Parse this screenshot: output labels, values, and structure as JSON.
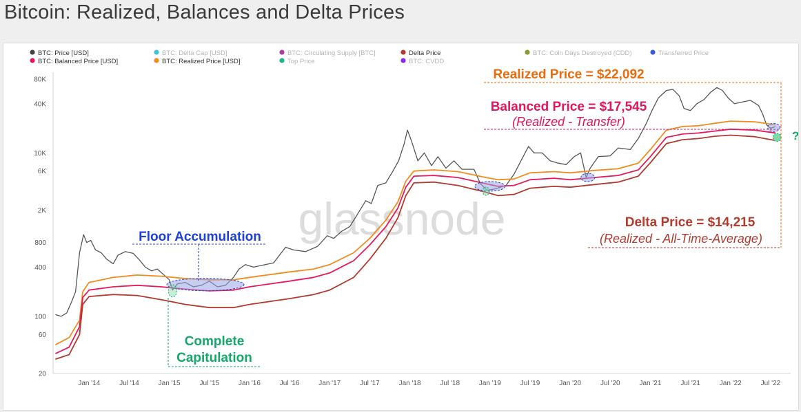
{
  "title": "Bitcoin: Realized, Balances and Delta Prices",
  "colors": {
    "price": "#555555",
    "realized": "#f08c1e",
    "balanced": "#e6195a",
    "delta": "#b23a2c",
    "orange_text": "#ec6b0c",
    "pink_text": "#e2155c",
    "brown_text": "#b33b2e",
    "blue_text": "#1f3fd6",
    "green_text": "#14a86a",
    "highlight_fill": "#9aa6e6",
    "highlight_stroke": "#2b45c9"
  },
  "legend": [
    {
      "label": "BTC: Price [USD]",
      "color": "#444444",
      "active": true
    },
    {
      "label": "BTC: Balanced Price [USD]",
      "color": "#e6195a",
      "active": true
    },
    {
      "label": "BTC: Delta Cap [USD]",
      "color": "#3fc1e0",
      "active": false
    },
    {
      "label": "BTC: Realized Price [USD]",
      "color": "#f08c1e",
      "active": true
    },
    {
      "label": "BTC: Circulating Supply [BTC]",
      "color": "#b03a9e",
      "active": false
    },
    {
      "label": "Top Price",
      "color": "#1fb38a",
      "active": false
    },
    {
      "label": "Delta Price",
      "color": "#b23a2c",
      "active": true
    },
    {
      "label": "BTC: CVDD",
      "color": "#8a2be2",
      "active": false
    },
    {
      "label": "BTC: Coin Days Destroyed (CDD)",
      "color": "#8a9a2a",
      "active": false
    },
    {
      "label": "Transferred Price",
      "color": "#3b5bdb",
      "active": false
    }
  ],
  "watermark": "glassnode",
  "annotations": {
    "realized_price": "Realized Price = $22,092",
    "balanced_price": "Balanced Price = $17,545",
    "balanced_sub": "(Realized - Transfer)",
    "delta_price": "Delta Price = $14,215",
    "delta_sub": "(Realized - All-Time-Average)",
    "floor_accumulation": "Floor Accumulation",
    "complete_capitulation_1": "Complete",
    "complete_capitulation_2": "Capitulation",
    "question": "?"
  },
  "chart_data": {
    "type": "line",
    "title": "Bitcoin: Realized, Balances and Delta Prices",
    "y_scale": "log",
    "ylim": [
      20,
      80000
    ],
    "y_ticks": [
      {
        "label": "20",
        "value": 20
      },
      {
        "label": "60",
        "value": 60
      },
      {
        "label": "100",
        "value": 100
      },
      {
        "label": "400",
        "value": 400
      },
      {
        "label": "800",
        "value": 800
      },
      {
        "label": "2K",
        "value": 2000
      },
      {
        "label": "6K",
        "value": 6000
      },
      {
        "label": "10K",
        "value": 10000
      },
      {
        "label": "40K",
        "value": 40000
      },
      {
        "label": "80K",
        "value": 80000
      }
    ],
    "xlim": [
      2013.55,
      2022.75
    ],
    "x_ticks": [
      {
        "label": "Jan '14",
        "value": 2014.0
      },
      {
        "label": "Jul '14",
        "value": 2014.5
      },
      {
        "label": "Jan '15",
        "value": 2015.0
      },
      {
        "label": "Jul '15",
        "value": 2015.5
      },
      {
        "label": "Jan '16",
        "value": 2016.0
      },
      {
        "label": "Jul '16",
        "value": 2016.5
      },
      {
        "label": "Jan '17",
        "value": 2017.0
      },
      {
        "label": "Jul '17",
        "value": 2017.5
      },
      {
        "label": "Jan '18",
        "value": 2018.0
      },
      {
        "label": "Jul '18",
        "value": 2018.5
      },
      {
        "label": "Jan '19",
        "value": 2019.0
      },
      {
        "label": "Jul '19",
        "value": 2019.5
      },
      {
        "label": "Jan '20",
        "value": 2020.0
      },
      {
        "label": "Jul '20",
        "value": 2020.5
      },
      {
        "label": "Jan '21",
        "value": 2021.0
      },
      {
        "label": "Jul '21",
        "value": 2021.5
      },
      {
        "label": "Jan '22",
        "value": 2022.0
      },
      {
        "label": "Jul '22",
        "value": 2022.5
      }
    ],
    "grid": false,
    "legend_position": "top",
    "series": [
      {
        "name": "BTC: Price [USD]",
        "color": "#555555",
        "points": [
          [
            2013.58,
            105
          ],
          [
            2013.65,
            100
          ],
          [
            2013.72,
            110
          ],
          [
            2013.78,
            150
          ],
          [
            2013.83,
            200
          ],
          [
            2013.88,
            600
          ],
          [
            2013.93,
            1000
          ],
          [
            2013.97,
            800
          ],
          [
            2014.02,
            850
          ],
          [
            2014.08,
            650
          ],
          [
            2014.15,
            600
          ],
          [
            2014.22,
            500
          ],
          [
            2014.3,
            440
          ],
          [
            2014.36,
            560
          ],
          [
            2014.45,
            620
          ],
          [
            2014.55,
            590
          ],
          [
            2014.62,
            500
          ],
          [
            2014.7,
            400
          ],
          [
            2014.78,
            360
          ],
          [
            2014.85,
            380
          ],
          [
            2014.92,
            330
          ],
          [
            2015.0,
            280
          ],
          [
            2015.04,
            210
          ],
          [
            2015.1,
            250
          ],
          [
            2015.2,
            260
          ],
          [
            2015.3,
            230
          ],
          [
            2015.4,
            240
          ],
          [
            2015.5,
            270
          ],
          [
            2015.6,
            230
          ],
          [
            2015.7,
            240
          ],
          [
            2015.8,
            300
          ],
          [
            2015.87,
            380
          ],
          [
            2015.95,
            430
          ],
          [
            2016.05,
            400
          ],
          [
            2016.15,
            420
          ],
          [
            2016.3,
            450
          ],
          [
            2016.45,
            700
          ],
          [
            2016.55,
            650
          ],
          [
            2016.7,
            620
          ],
          [
            2016.85,
            720
          ],
          [
            2016.97,
            970
          ],
          [
            2017.05,
            900
          ],
          [
            2017.15,
            1100
          ],
          [
            2017.25,
            1250
          ],
          [
            2017.35,
            1800
          ],
          [
            2017.45,
            2600
          ],
          [
            2017.52,
            2400
          ],
          [
            2017.6,
            4000
          ],
          [
            2017.7,
            4300
          ],
          [
            2017.78,
            5800
          ],
          [
            2017.86,
            8000
          ],
          [
            2017.93,
            13000
          ],
          [
            2017.97,
            19000
          ],
          [
            2018.02,
            14000
          ],
          [
            2018.1,
            8000
          ],
          [
            2018.18,
            10000
          ],
          [
            2018.27,
            7000
          ],
          [
            2018.35,
            9000
          ],
          [
            2018.45,
            6500
          ],
          [
            2018.55,
            8000
          ],
          [
            2018.65,
            6300
          ],
          [
            2018.8,
            6300
          ],
          [
            2018.88,
            4200
          ],
          [
            2018.96,
            3500
          ],
          [
            2019.05,
            3600
          ],
          [
            2019.2,
            4000
          ],
          [
            2019.3,
            5500
          ],
          [
            2019.4,
            8500
          ],
          [
            2019.48,
            12000
          ],
          [
            2019.55,
            10000
          ],
          [
            2019.65,
            10000
          ],
          [
            2019.75,
            8000
          ],
          [
            2019.85,
            7500
          ],
          [
            2019.95,
            7200
          ],
          [
            2020.05,
            9000
          ],
          [
            2020.13,
            10000
          ],
          [
            2020.2,
            5000
          ],
          [
            2020.25,
            6500
          ],
          [
            2020.35,
            9000
          ],
          [
            2020.5,
            9200
          ],
          [
            2020.6,
            11500
          ],
          [
            2020.75,
            11000
          ],
          [
            2020.85,
            15000
          ],
          [
            2020.95,
            23000
          ],
          [
            2021.02,
            33000
          ],
          [
            2021.1,
            47000
          ],
          [
            2021.2,
            58000
          ],
          [
            2021.28,
            60000
          ],
          [
            2021.36,
            50000
          ],
          [
            2021.42,
            35000
          ],
          [
            2021.5,
            33000
          ],
          [
            2021.58,
            40000
          ],
          [
            2021.67,
            45000
          ],
          [
            2021.75,
            55000
          ],
          [
            2021.83,
            63000
          ],
          [
            2021.9,
            58000
          ],
          [
            2021.97,
            47000
          ],
          [
            2022.05,
            40000
          ],
          [
            2022.15,
            42000
          ],
          [
            2022.25,
            44000
          ],
          [
            2022.35,
            38000
          ],
          [
            2022.4,
            30000
          ],
          [
            2022.45,
            22000
          ],
          [
            2022.5,
            20000
          ],
          [
            2022.56,
            21000
          ]
        ]
      },
      {
        "name": "BTC: Realized Price [USD]",
        "color": "#f08c1e",
        "points": [
          [
            2013.58,
            45
          ],
          [
            2013.75,
            55
          ],
          [
            2013.88,
            90
          ],
          [
            2013.92,
            200
          ],
          [
            2014.0,
            260
          ],
          [
            2014.3,
            300
          ],
          [
            2014.6,
            320
          ],
          [
            2014.9,
            310
          ],
          [
            2015.2,
            290
          ],
          [
            2015.5,
            280
          ],
          [
            2015.8,
            280
          ],
          [
            2016.0,
            300
          ],
          [
            2016.5,
            350
          ],
          [
            2016.8,
            380
          ],
          [
            2017.0,
            430
          ],
          [
            2017.3,
            600
          ],
          [
            2017.5,
            900
          ],
          [
            2017.7,
            1500
          ],
          [
            2017.85,
            2500
          ],
          [
            2017.95,
            4500
          ],
          [
            2018.05,
            6000
          ],
          [
            2018.3,
            6200
          ],
          [
            2018.6,
            5900
          ],
          [
            2018.95,
            5000
          ],
          [
            2019.1,
            4700
          ],
          [
            2019.3,
            4800
          ],
          [
            2019.5,
            5700
          ],
          [
            2019.8,
            5900
          ],
          [
            2020.0,
            5700
          ],
          [
            2020.3,
            6100
          ],
          [
            2020.6,
            6400
          ],
          [
            2020.85,
            7500
          ],
          [
            2021.0,
            11000
          ],
          [
            2021.2,
            19000
          ],
          [
            2021.4,
            21000
          ],
          [
            2021.6,
            21500
          ],
          [
            2021.8,
            23000
          ],
          [
            2022.0,
            24500
          ],
          [
            2022.3,
            24000
          ],
          [
            2022.56,
            22092
          ]
        ]
      },
      {
        "name": "BTC: Balanced Price [USD]",
        "color": "#e6195a",
        "points": [
          [
            2013.58,
            35
          ],
          [
            2013.75,
            42
          ],
          [
            2013.88,
            75
          ],
          [
            2013.92,
            170
          ],
          [
            2014.0,
            210
          ],
          [
            2014.3,
            230
          ],
          [
            2014.6,
            240
          ],
          [
            2014.9,
            230
          ],
          [
            2015.2,
            215
          ],
          [
            2015.5,
            205
          ],
          [
            2015.8,
            210
          ],
          [
            2016.0,
            230
          ],
          [
            2016.5,
            270
          ],
          [
            2016.8,
            300
          ],
          [
            2017.0,
            340
          ],
          [
            2017.3,
            480
          ],
          [
            2017.5,
            750
          ],
          [
            2017.7,
            1250
          ],
          [
            2017.85,
            2100
          ],
          [
            2017.95,
            3800
          ],
          [
            2018.05,
            5200
          ],
          [
            2018.3,
            5300
          ],
          [
            2018.6,
            5000
          ],
          [
            2018.95,
            4200
          ],
          [
            2019.1,
            3900
          ],
          [
            2019.3,
            4000
          ],
          [
            2019.5,
            4700
          ],
          [
            2019.8,
            4900
          ],
          [
            2020.0,
            4700
          ],
          [
            2020.3,
            5000
          ],
          [
            2020.6,
            5300
          ],
          [
            2020.85,
            6200
          ],
          [
            2021.0,
            9000
          ],
          [
            2021.2,
            15500
          ],
          [
            2021.4,
            17000
          ],
          [
            2021.6,
            17500
          ],
          [
            2021.8,
            18500
          ],
          [
            2022.0,
            19500
          ],
          [
            2022.3,
            19000
          ],
          [
            2022.56,
            17545
          ]
        ]
      },
      {
        "name": "Delta Price",
        "color": "#b23a2c",
        "points": [
          [
            2013.58,
            30
          ],
          [
            2013.75,
            34
          ],
          [
            2013.88,
            60
          ],
          [
            2013.92,
            140
          ],
          [
            2014.0,
            175
          ],
          [
            2014.3,
            185
          ],
          [
            2014.6,
            180
          ],
          [
            2014.9,
            160
          ],
          [
            2015.2,
            140
          ],
          [
            2015.5,
            128
          ],
          [
            2015.8,
            128
          ],
          [
            2016.0,
            140
          ],
          [
            2016.5,
            165
          ],
          [
            2016.8,
            185
          ],
          [
            2017.0,
            210
          ],
          [
            2017.3,
            300
          ],
          [
            2017.5,
            500
          ],
          [
            2017.7,
            900
          ],
          [
            2017.85,
            1600
          ],
          [
            2017.95,
            3000
          ],
          [
            2018.05,
            4300
          ],
          [
            2018.3,
            4400
          ],
          [
            2018.6,
            4000
          ],
          [
            2018.95,
            3300
          ],
          [
            2019.1,
            3000
          ],
          [
            2019.3,
            3100
          ],
          [
            2019.5,
            3700
          ],
          [
            2019.8,
            3900
          ],
          [
            2020.0,
            3800
          ],
          [
            2020.3,
            4100
          ],
          [
            2020.6,
            4400
          ],
          [
            2020.85,
            5200
          ],
          [
            2021.0,
            7600
          ],
          [
            2021.2,
            13000
          ],
          [
            2021.4,
            14500
          ],
          [
            2021.6,
            15000
          ],
          [
            2021.8,
            16000
          ],
          [
            2022.0,
            16500
          ],
          [
            2022.3,
            15800
          ],
          [
            2022.56,
            14215
          ]
        ]
      }
    ]
  }
}
